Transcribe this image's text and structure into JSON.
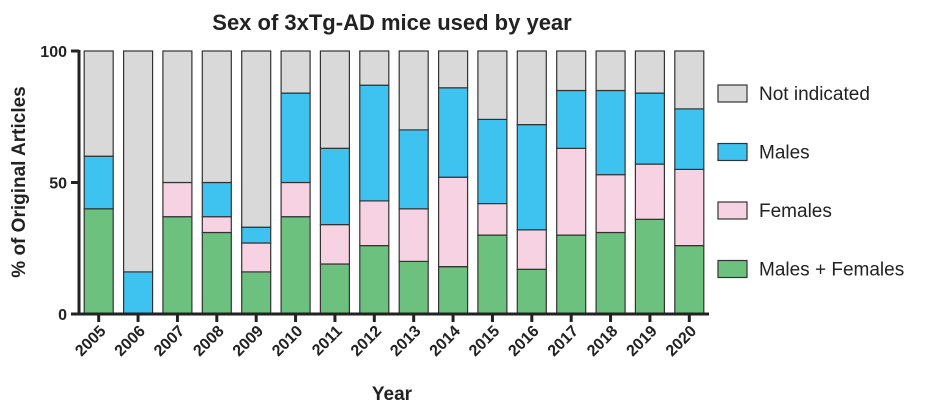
{
  "chart_data": {
    "type": "bar",
    "stacked": true,
    "title": "Sex of 3xTg-AD mice used by year",
    "xlabel": "Year",
    "ylabel": "% of Original Articles",
    "ylim": [
      0,
      100
    ],
    "yticks": [
      0,
      50,
      100
    ],
    "legend_position": "right",
    "categories": [
      "2005",
      "2006",
      "2007",
      "2008",
      "2009",
      "2010",
      "2011",
      "2012",
      "2013",
      "2014",
      "2015",
      "2016",
      "2017",
      "2018",
      "2019",
      "2020"
    ],
    "series": [
      {
        "name": "Males + Females",
        "color": "#6cc17f",
        "values": [
          40,
          0,
          37,
          31,
          16,
          37,
          19,
          26,
          20,
          18,
          30,
          17,
          30,
          31,
          36,
          26
        ]
      },
      {
        "name": "Females",
        "color": "#f7d2e2",
        "values": [
          0,
          0,
          13,
          6,
          11,
          13,
          15,
          17,
          20,
          34,
          12,
          15,
          33,
          22,
          21,
          29
        ]
      },
      {
        "name": "Males",
        "color": "#3ec3f0",
        "values": [
          20,
          16,
          0,
          13,
          6,
          34,
          29,
          44,
          30,
          34,
          32,
          40,
          22,
          32,
          27,
          23
        ]
      },
      {
        "name": "Not indicated",
        "color": "#d9d9d9",
        "values": [
          40,
          84,
          50,
          50,
          67,
          16,
          37,
          13,
          30,
          14,
          26,
          28,
          15,
          15,
          16,
          22
        ]
      }
    ],
    "legend_order": [
      "Not indicated",
      "Males",
      "Females",
      "Males + Females"
    ]
  }
}
